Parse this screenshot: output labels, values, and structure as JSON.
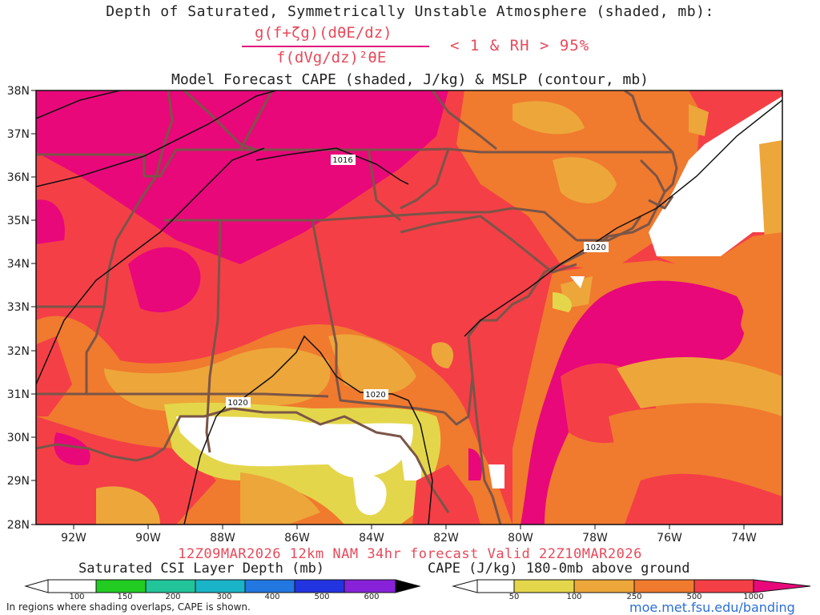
{
  "header": {
    "title_line1": "Depth of Saturated, Symmetrically Unstable Atmosphere (shaded, mb):",
    "fraction_numerator": "g(f+ζg)(dθE/dz)",
    "fraction_denominator": "f(dVg/dz)²θE",
    "condition": "< 1 & RH > 95%",
    "title_line2": "Model Forecast CAPE (shaded, J/kg) & MSLP (contour, mb)"
  },
  "map": {
    "lat_labels": [
      "38N",
      "37N",
      "36N",
      "35N",
      "34N",
      "33N",
      "32N",
      "31N",
      "30N",
      "29N",
      "28N"
    ],
    "lon_labels": [
      "92W",
      "90W",
      "88W",
      "86W",
      "84W",
      "82W",
      "80W",
      "78W",
      "76W",
      "74W"
    ],
    "isobar_labels": [
      "1016",
      "1020",
      "1020",
      "1020"
    ],
    "colors": {
      "cape_over_1000": "#e8087a",
      "cape_500_1000": "#f43f47",
      "cape_250_500": "#f07a2e",
      "cape_100_250": "#eda63a",
      "cape_50_100": "#e4d64a",
      "cape_below_50": "#ffffff",
      "land_borders": "#7a5548",
      "isobars": "#111111"
    }
  },
  "footer": {
    "valid_line": "12Z09MAR2026 12km NAM 34hr forecast Valid 22Z10MAR2026",
    "csi_title": "Saturated CSI Layer Depth (mb)",
    "csi_ticks": [
      "100",
      "150",
      "200",
      "300",
      "400",
      "500",
      "600"
    ],
    "csi_colors": [
      "#ffffff",
      "#22cc22",
      "#22c49a",
      "#1ab4c8",
      "#2277e0",
      "#2233e0",
      "#8822d8",
      "#000000"
    ],
    "cape_title": "CAPE (J/kg) 180-0mb above ground",
    "cape_ticks": [
      "50",
      "100",
      "250",
      "500",
      "1000"
    ],
    "cape_colors": [
      "#ffffff",
      "#e4d64a",
      "#eda63a",
      "#f07a2e",
      "#f43f47",
      "#e8087a"
    ],
    "note": "In regions where shading overlaps, CAPE is shown.",
    "url": "moe.met.fsu.edu/banding"
  }
}
